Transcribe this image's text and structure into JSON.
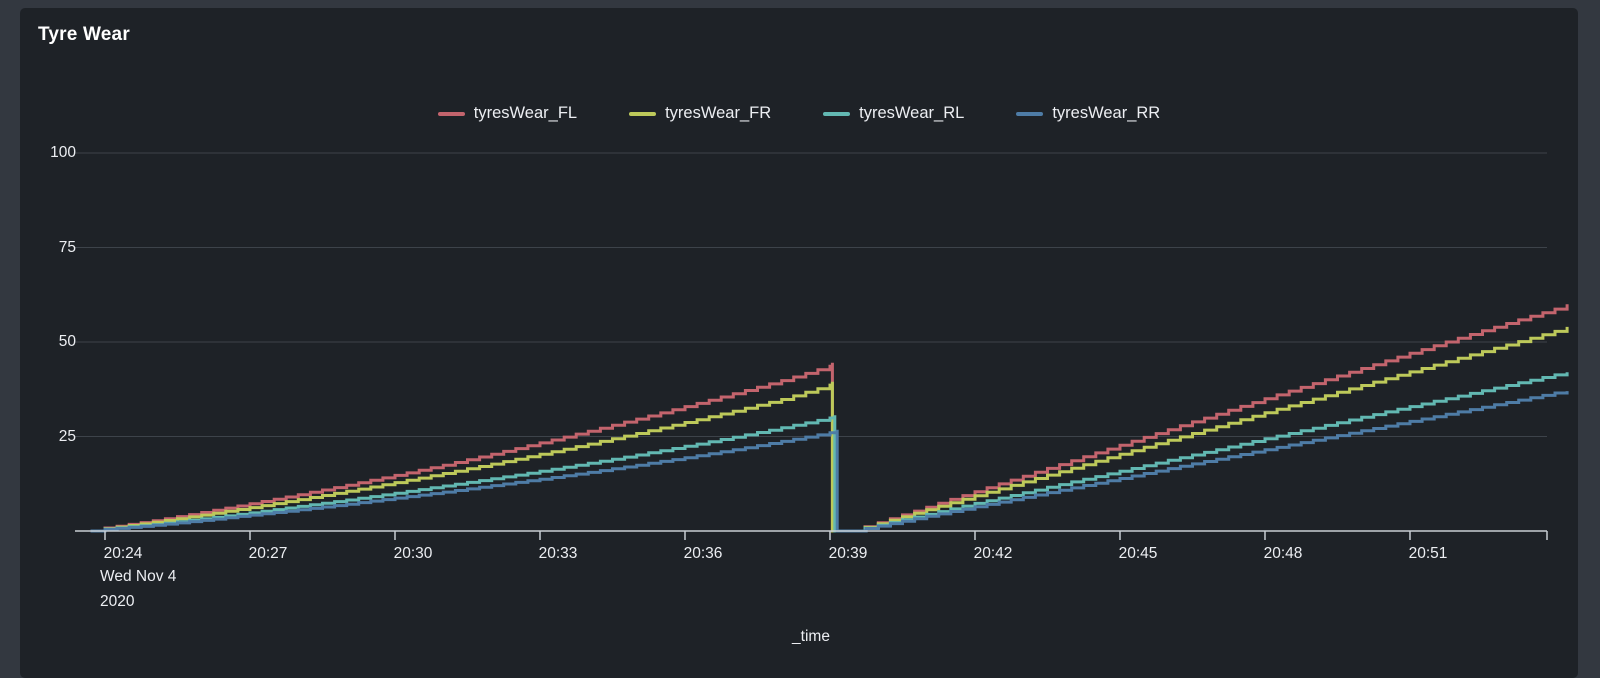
{
  "panel": {
    "title": "Tyre Wear"
  },
  "colors": {
    "outer_background": "#333840",
    "panel_background": "#1e2227",
    "gridline": "#3d434a",
    "axis_line": "#c8ced4",
    "text": "#eceef2"
  },
  "chart_data": {
    "type": "line",
    "line_style": "step",
    "title": "Tyre Wear",
    "xlabel": "_time",
    "ylabel": "",
    "ylim": [
      0,
      100
    ],
    "grid": "horizontal",
    "legend_position": "top",
    "x_unit": "minutes since 20:24",
    "x_range_minutes": [
      -0.6,
      30.4
    ],
    "y_ticks": [
      25,
      50,
      75,
      100
    ],
    "x_ticks": [
      {
        "t": 0,
        "label": "20:24"
      },
      {
        "t": 3,
        "label": "20:27"
      },
      {
        "t": 6,
        "label": "20:30"
      },
      {
        "t": 9,
        "label": "20:33"
      },
      {
        "t": 12,
        "label": "20:36"
      },
      {
        "t": 15,
        "label": "20:39"
      },
      {
        "t": 18,
        "label": "20:42"
      },
      {
        "t": 21,
        "label": "20:45"
      },
      {
        "t": 24,
        "label": "20:48"
      },
      {
        "t": 27,
        "label": "20:51"
      }
    ],
    "x_start_date": {
      "line1": "Wed Nov 4",
      "line2": "2020"
    },
    "series": [
      {
        "name": "tyresWear_FL",
        "color": "#c3646d",
        "points": [
          [
            -0.3,
            0
          ],
          [
            0,
            0.8
          ],
          [
            1,
            2.7
          ],
          [
            2,
            4.9
          ],
          [
            3,
            7.2
          ],
          [
            4,
            9.6
          ],
          [
            5,
            12.1
          ],
          [
            6,
            14.7
          ],
          [
            7,
            17.4
          ],
          [
            8,
            20.3
          ],
          [
            9,
            23.3
          ],
          [
            10,
            26.4
          ],
          [
            11,
            29.6
          ],
          [
            12,
            32.9
          ],
          [
            13,
            36.3
          ],
          [
            14,
            39.8
          ],
          [
            15,
            43.6
          ],
          [
            15.05,
            44.5
          ],
          [
            15.05,
            0
          ],
          [
            15.45,
            0
          ],
          [
            16,
            2.2
          ],
          [
            17,
            6.3
          ],
          [
            18,
            10.4
          ],
          [
            19,
            14.5
          ],
          [
            20,
            18.6
          ],
          [
            21,
            22.7
          ],
          [
            22,
            26.8
          ],
          [
            23,
            30.9
          ],
          [
            24,
            35
          ],
          [
            25,
            39
          ],
          [
            26,
            43
          ],
          [
            27,
            47
          ],
          [
            28,
            51
          ],
          [
            29,
            54.9
          ],
          [
            30,
            58.7
          ],
          [
            30.25,
            60
          ]
        ]
      },
      {
        "name": "tyresWear_FR",
        "color": "#bdc95a",
        "points": [
          [
            -0.3,
            0
          ],
          [
            0,
            0.6
          ],
          [
            1,
            2.3
          ],
          [
            2,
            4.2
          ],
          [
            3,
            6.2
          ],
          [
            4,
            8.3
          ],
          [
            5,
            10.5
          ],
          [
            6,
            12.8
          ],
          [
            7,
            15.2
          ],
          [
            8,
            17.7
          ],
          [
            9,
            20.3
          ],
          [
            10,
            23
          ],
          [
            11,
            25.8
          ],
          [
            12,
            28.7
          ],
          [
            13,
            31.7
          ],
          [
            14,
            34.8
          ],
          [
            15,
            38.6
          ],
          [
            15.05,
            39.5
          ],
          [
            15.05,
            0
          ],
          [
            15.45,
            0
          ],
          [
            16,
            1.9
          ],
          [
            17,
            5.6
          ],
          [
            18,
            9.3
          ],
          [
            19,
            13
          ],
          [
            20,
            16.6
          ],
          [
            21,
            20.3
          ],
          [
            22,
            24
          ],
          [
            23,
            27.6
          ],
          [
            24,
            31.3
          ],
          [
            25,
            34.9
          ],
          [
            26,
            38.5
          ],
          [
            27,
            42.1
          ],
          [
            28,
            45.7
          ],
          [
            29,
            49.2
          ],
          [
            30,
            52.8
          ],
          [
            30.25,
            54
          ]
        ]
      },
      {
        "name": "tyresWear_RL",
        "color": "#62b8b2",
        "points": [
          [
            -0.3,
            0
          ],
          [
            0,
            0.5
          ],
          [
            1,
            1.7
          ],
          [
            2,
            3.2
          ],
          [
            3,
            4.8
          ],
          [
            4,
            6.5
          ],
          [
            5,
            8.2
          ],
          [
            6,
            10
          ],
          [
            7,
            11.9
          ],
          [
            8,
            13.8
          ],
          [
            9,
            15.8
          ],
          [
            10,
            17.9
          ],
          [
            11,
            20.1
          ],
          [
            12,
            22.4
          ],
          [
            13,
            24.8
          ],
          [
            14,
            27.3
          ],
          [
            15,
            29.9
          ],
          [
            15.1,
            30.6
          ],
          [
            15.1,
            0
          ],
          [
            15.45,
            0
          ],
          [
            16,
            1.5
          ],
          [
            17,
            4.4
          ],
          [
            18,
            7.3
          ],
          [
            19,
            10.1
          ],
          [
            20,
            13
          ],
          [
            21,
            15.8
          ],
          [
            22,
            18.7
          ],
          [
            23,
            21.5
          ],
          [
            24,
            24.4
          ],
          [
            25,
            27.2
          ],
          [
            26,
            30.1
          ],
          [
            27,
            32.9
          ],
          [
            28,
            35.7
          ],
          [
            29,
            38.5
          ],
          [
            30,
            41.3
          ],
          [
            30.25,
            42
          ]
        ]
      },
      {
        "name": "tyresWear_RR",
        "color": "#4e7ca6",
        "points": [
          [
            -0.3,
            0
          ],
          [
            0,
            0.4
          ],
          [
            1,
            1.5
          ],
          [
            2,
            2.8
          ],
          [
            3,
            4.2
          ],
          [
            4,
            5.6
          ],
          [
            5,
            7.1
          ],
          [
            6,
            8.7
          ],
          [
            7,
            10.3
          ],
          [
            8,
            12
          ],
          [
            9,
            13.7
          ],
          [
            10,
            15.5
          ],
          [
            11,
            17.4
          ],
          [
            12,
            19.4
          ],
          [
            13,
            21.5
          ],
          [
            14,
            23.7
          ],
          [
            15,
            26
          ],
          [
            15.15,
            26.8
          ],
          [
            15.15,
            0
          ],
          [
            15.5,
            0
          ],
          [
            16,
            1.3
          ],
          [
            17,
            3.9
          ],
          [
            18,
            6.4
          ],
          [
            19,
            8.9
          ],
          [
            20,
            11.4
          ],
          [
            21,
            13.9
          ],
          [
            22,
            16.5
          ],
          [
            23,
            19
          ],
          [
            24,
            21.5
          ],
          [
            25,
            24
          ],
          [
            26,
            26.5
          ],
          [
            27,
            29
          ],
          [
            28,
            31.5
          ],
          [
            29,
            34
          ],
          [
            30,
            36.5
          ],
          [
            30.25,
            37
          ]
        ]
      }
    ]
  }
}
